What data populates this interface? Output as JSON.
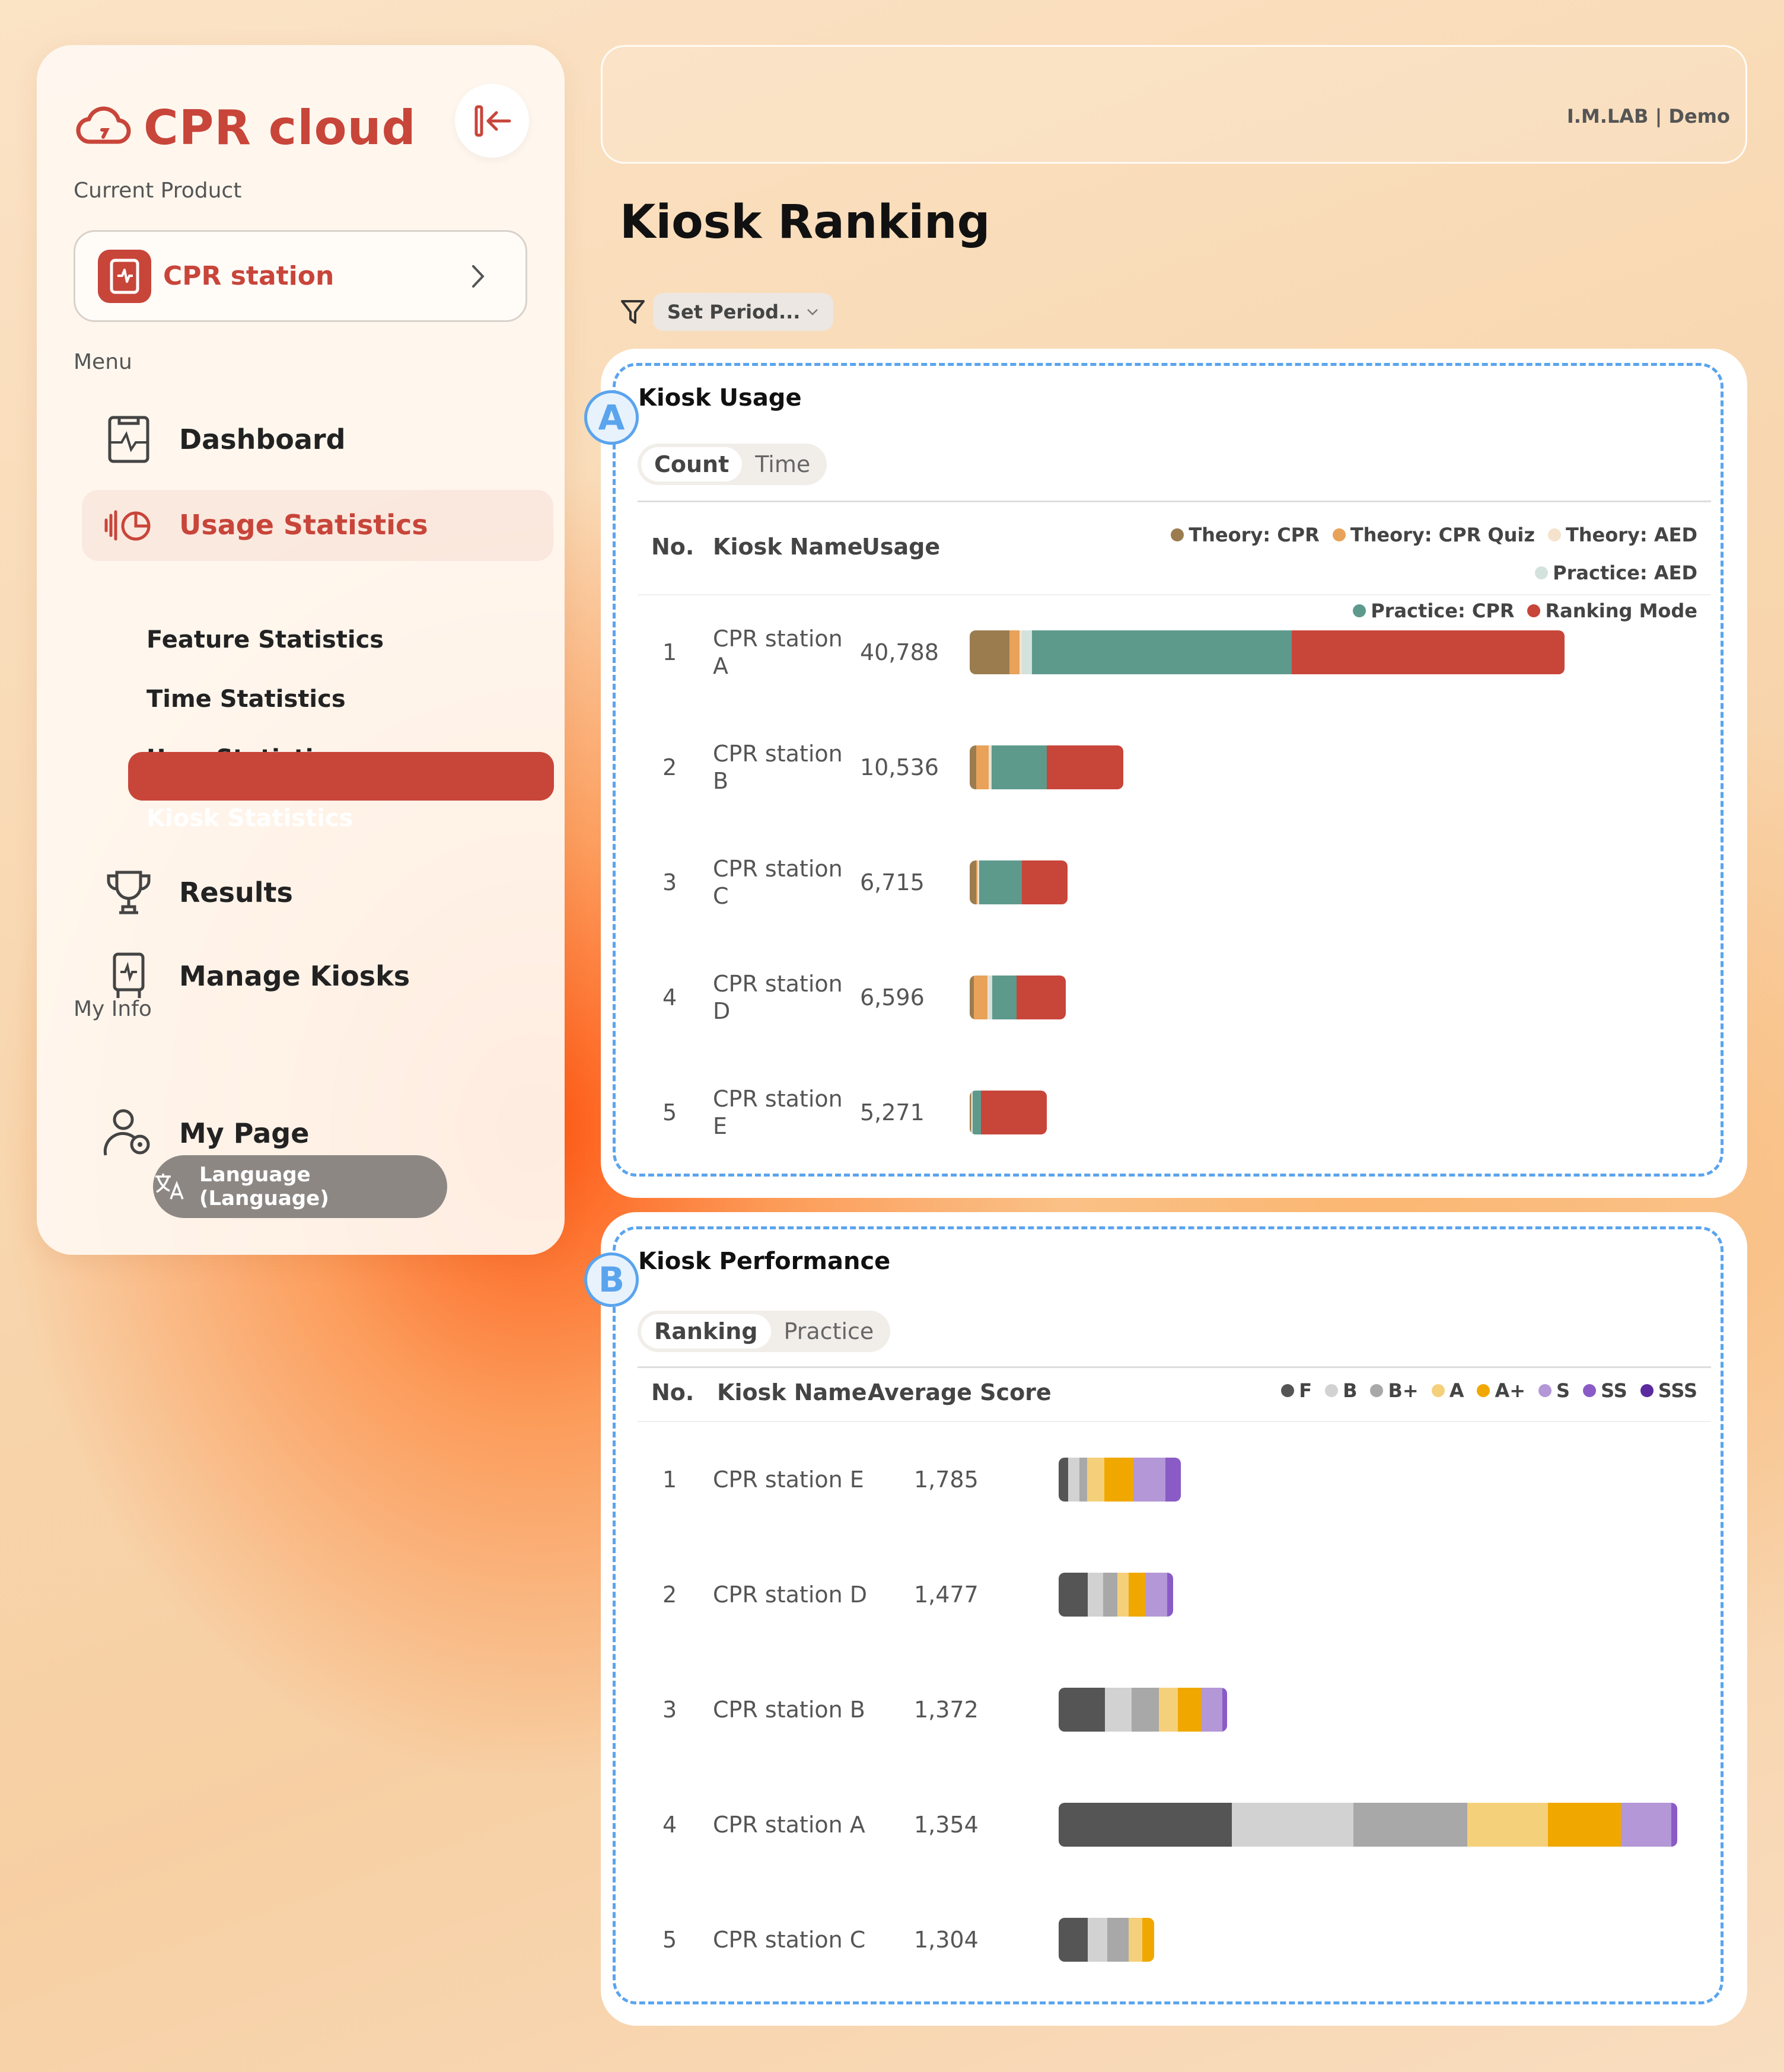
{
  "sidebar": {
    "brand": "CPR cloud",
    "current_product_label": "Current Product",
    "product": "CPR station",
    "menu_label": "Menu",
    "menu": {
      "dashboard": "Dashboard",
      "usage_statistics": "Usage Statistics",
      "sub": [
        "Feature Statistics",
        "Time Statistics",
        "User Statistics",
        "Kiosk Statistics"
      ],
      "results": "Results",
      "manage_kiosks": "Manage Kiosks"
    },
    "my_info_label": "My Info",
    "my_page": "My Page",
    "language": "Language (Language)"
  },
  "topbar": {
    "org": "I.M.LAB | Demo"
  },
  "page_title": "Kiosk Ranking",
  "filter": {
    "label": "Set Period..."
  },
  "usage": {
    "badge": "A",
    "title": "Kiosk Usage",
    "tabs": [
      "Count",
      "Time"
    ],
    "headers": {
      "no": "No.",
      "name": "Kiosk Name",
      "value": "Usage"
    },
    "legend": [
      {
        "name": "Theory: CPR",
        "color": "#9b7c4f"
      },
      {
        "name": "Theory: CPR Quiz",
        "color": "#e8a25a"
      },
      {
        "name": "Theory: AED",
        "color": "#f4e2cc"
      },
      {
        "name": "Practice: AED",
        "color": "#d3e2dc"
      },
      {
        "name": "Practice: CPR",
        "color": "#5d9a8c"
      },
      {
        "name": "Ranking Mode",
        "color": "#c8453a"
      }
    ],
    "rows": [
      {
        "no": "1",
        "name_line1": "CPR station",
        "name_line2": "A",
        "value": "40,788",
        "segments": [
          2740,
          660,
          180,
          700,
          17800,
          18708
        ]
      },
      {
        "no": "2",
        "name_line1": "CPR station",
        "name_line2": "B",
        "value": "10,536",
        "segments": [
          440,
          880,
          120,
          60,
          3800,
          5236
        ]
      },
      {
        "no": "3",
        "name_line1": "CPR station",
        "name_line2": "C",
        "value": "6,715",
        "segments": [
          460,
          80,
          60,
          60,
          2900,
          3155
        ]
      },
      {
        "no": "4",
        "name_line1": "CPR station",
        "name_line2": "D",
        "value": "6,596",
        "segments": [
          300,
          900,
          100,
          250,
          1650,
          3396
        ]
      },
      {
        "no": "5",
        "name_line1": "CPR station",
        "name_line2": "E",
        "value": "5,271",
        "segments": [
          80,
          60,
          40,
          40,
          551,
          4500
        ]
      }
    ],
    "axis_max": 40788
  },
  "performance": {
    "badge": "B",
    "title": "Kiosk Performance",
    "tabs": [
      "Ranking",
      "Practice"
    ],
    "headers": {
      "no": "No.",
      "name": "Kiosk Name",
      "value": "Average Score"
    },
    "legend": [
      {
        "name": "F",
        "color": "#555555"
      },
      {
        "name": "B",
        "color": "#d2d2d2"
      },
      {
        "name": "B+",
        "color": "#a8a8a8"
      },
      {
        "name": "A",
        "color": "#f5d07a"
      },
      {
        "name": "A+",
        "color": "#f0a800"
      },
      {
        "name": "S",
        "color": "#b497d6"
      },
      {
        "name": "SS",
        "color": "#8a5bc6"
      },
      {
        "name": "SSS",
        "color": "#5b2a9e"
      }
    ],
    "rows": [
      {
        "no": "1",
        "name": "CPR station E",
        "value": "1,785",
        "segments": [
          12,
          15,
          10,
          22,
          38,
          42,
          20,
          0
        ]
      },
      {
        "no": "2",
        "name": "CPR station D",
        "value": "1,477",
        "segments": [
          38,
          20,
          18,
          15,
          22,
          28,
          8,
          0
        ]
      },
      {
        "no": "3",
        "name": "CPR station B",
        "value": "1,372",
        "segments": [
          60,
          35,
          35,
          25,
          30,
          28,
          6,
          0
        ]
      },
      {
        "no": "4",
        "name": "CPR station A",
        "value": "1,354",
        "segments": [
          225,
          158,
          148,
          105,
          95,
          65,
          8,
          0
        ]
      },
      {
        "no": "5",
        "name": "CPR station C",
        "value": "1,304",
        "segments": [
          38,
          25,
          28,
          18,
          15,
          0,
          0,
          0
        ]
      }
    ],
    "axis_max": 804
  },
  "colors": {
    "accent": "#c8453a",
    "annotation": "#5aa4ee"
  },
  "icons": [
    "cloud-icon",
    "collapse-sidebar-icon",
    "kiosk-icon",
    "chevron-right-icon",
    "dashboard-icon",
    "usage-statistics-icon",
    "trophy-icon",
    "manage-kiosks-icon",
    "user-settings-icon",
    "translate-icon",
    "filter-icon",
    "chevron-down-icon"
  ]
}
